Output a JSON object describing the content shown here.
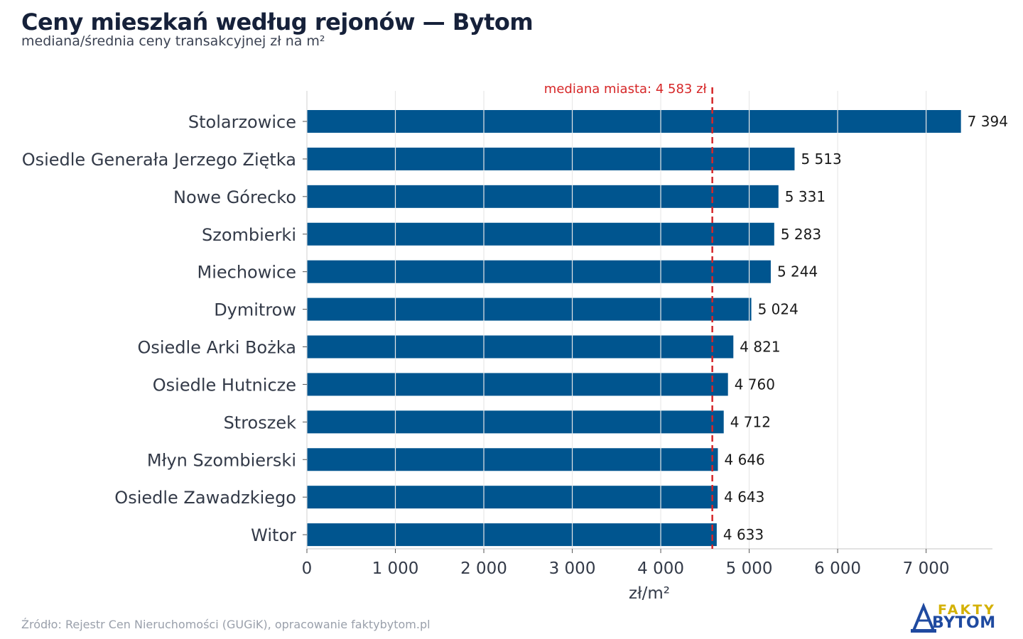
{
  "header": {
    "title": "Ceny mieszkań według rejonów — Bytom",
    "subtitle": "mediana/średnia ceny transakcyjnej zł na m²"
  },
  "footer": {
    "source": "Źródło: Rejestr Cen Nieruchomości (GUGiK), opracowanie faktybytom.pl"
  },
  "logo": {
    "line1": "FAKTY",
    "line2": "BYTOM"
  },
  "colors": {
    "bar": "#00558f",
    "median_line": "#d62728",
    "grid": "#e6e6e6",
    "text": "#333a48"
  },
  "chart_data": {
    "type": "bar",
    "orientation": "horizontal",
    "categories": [
      "Stolarzowice",
      "Osiedle Generała Jerzego Ziętka",
      "Nowe Górecko",
      "Szombierki",
      "Miechowice",
      "Dymitrow",
      "Osiedle Arki Bożka",
      "Osiedle Hutnicze",
      "Stroszek",
      "Młyn Szombierski",
      "Osiedle Zawadzkiego",
      "Witor"
    ],
    "values": [
      7394,
      5513,
      5331,
      5283,
      5244,
      5024,
      4821,
      4760,
      4712,
      4646,
      4643,
      4633
    ],
    "value_labels": [
      "7 394",
      "5 513",
      "5 331",
      "5 283",
      "5 244",
      "5 024",
      "4 821",
      "4 760",
      "4 712",
      "4 646",
      "4 643",
      "4 633"
    ],
    "xlabel": "zł/m²",
    "xlim": [
      0,
      7750
    ],
    "xticks": [
      0,
      1000,
      2000,
      3000,
      4000,
      5000,
      6000,
      7000
    ],
    "xtick_labels": [
      "0",
      "1 000",
      "2 000",
      "3 000",
      "4 000",
      "5 000",
      "6 000",
      "7 000"
    ],
    "grid": "vertical",
    "reference_line": {
      "value": 4583,
      "label": "mediana miasta: 4 583 zł"
    }
  }
}
